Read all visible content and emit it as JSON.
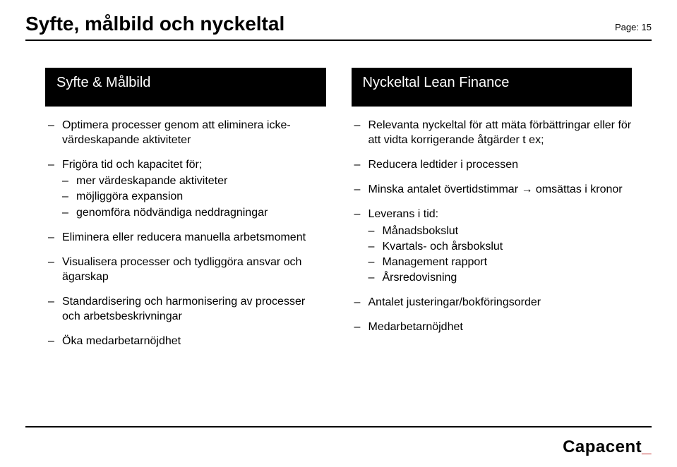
{
  "header": {
    "title": "Syfte, målbild och nyckeltal",
    "page_label": "Page: 15"
  },
  "left": {
    "heading": "Syfte & Målbild",
    "items": [
      {
        "text": "Optimera processer genom att eliminera icke-värdeskapande aktiviteter"
      },
      {
        "text": "Frigöra tid och kapacitet för;",
        "sub": [
          "mer värdeskapande aktiviteter",
          "möjliggöra expansion",
          "genomföra nödvändiga neddragningar"
        ]
      },
      {
        "text": "Eliminera eller reducera manuella arbetsmoment"
      },
      {
        "text": "Visualisera processer och tydliggöra ansvar och ägarskap"
      },
      {
        "text": "Standardisering och harmonisering av processer och arbetsbeskrivningar"
      },
      {
        "text": "Öka medarbetarnöjdhet"
      }
    ]
  },
  "right": {
    "heading": "Nyckeltal Lean Finance",
    "items": [
      {
        "text": "Relevanta nyckeltal för att mäta förbättringar eller för att vidta korrigerande åtgärder t ex;"
      },
      {
        "text": "Reducera ledtider i processen"
      },
      {
        "text": "Minska antalet övertidstimmar → omsättas i kronor"
      },
      {
        "text": "Leverans i tid:",
        "sub": [
          "Månadsbokslut",
          "Kvartals- och årsbokslut",
          "Management rapport",
          "Årsredovisning"
        ]
      },
      {
        "text": "Antalet justeringar/bokföringsorder"
      },
      {
        "text": "Medarbetarnöjdhet"
      }
    ]
  },
  "footer": {
    "logo_text": "Capacent",
    "logo_mark": "_"
  }
}
